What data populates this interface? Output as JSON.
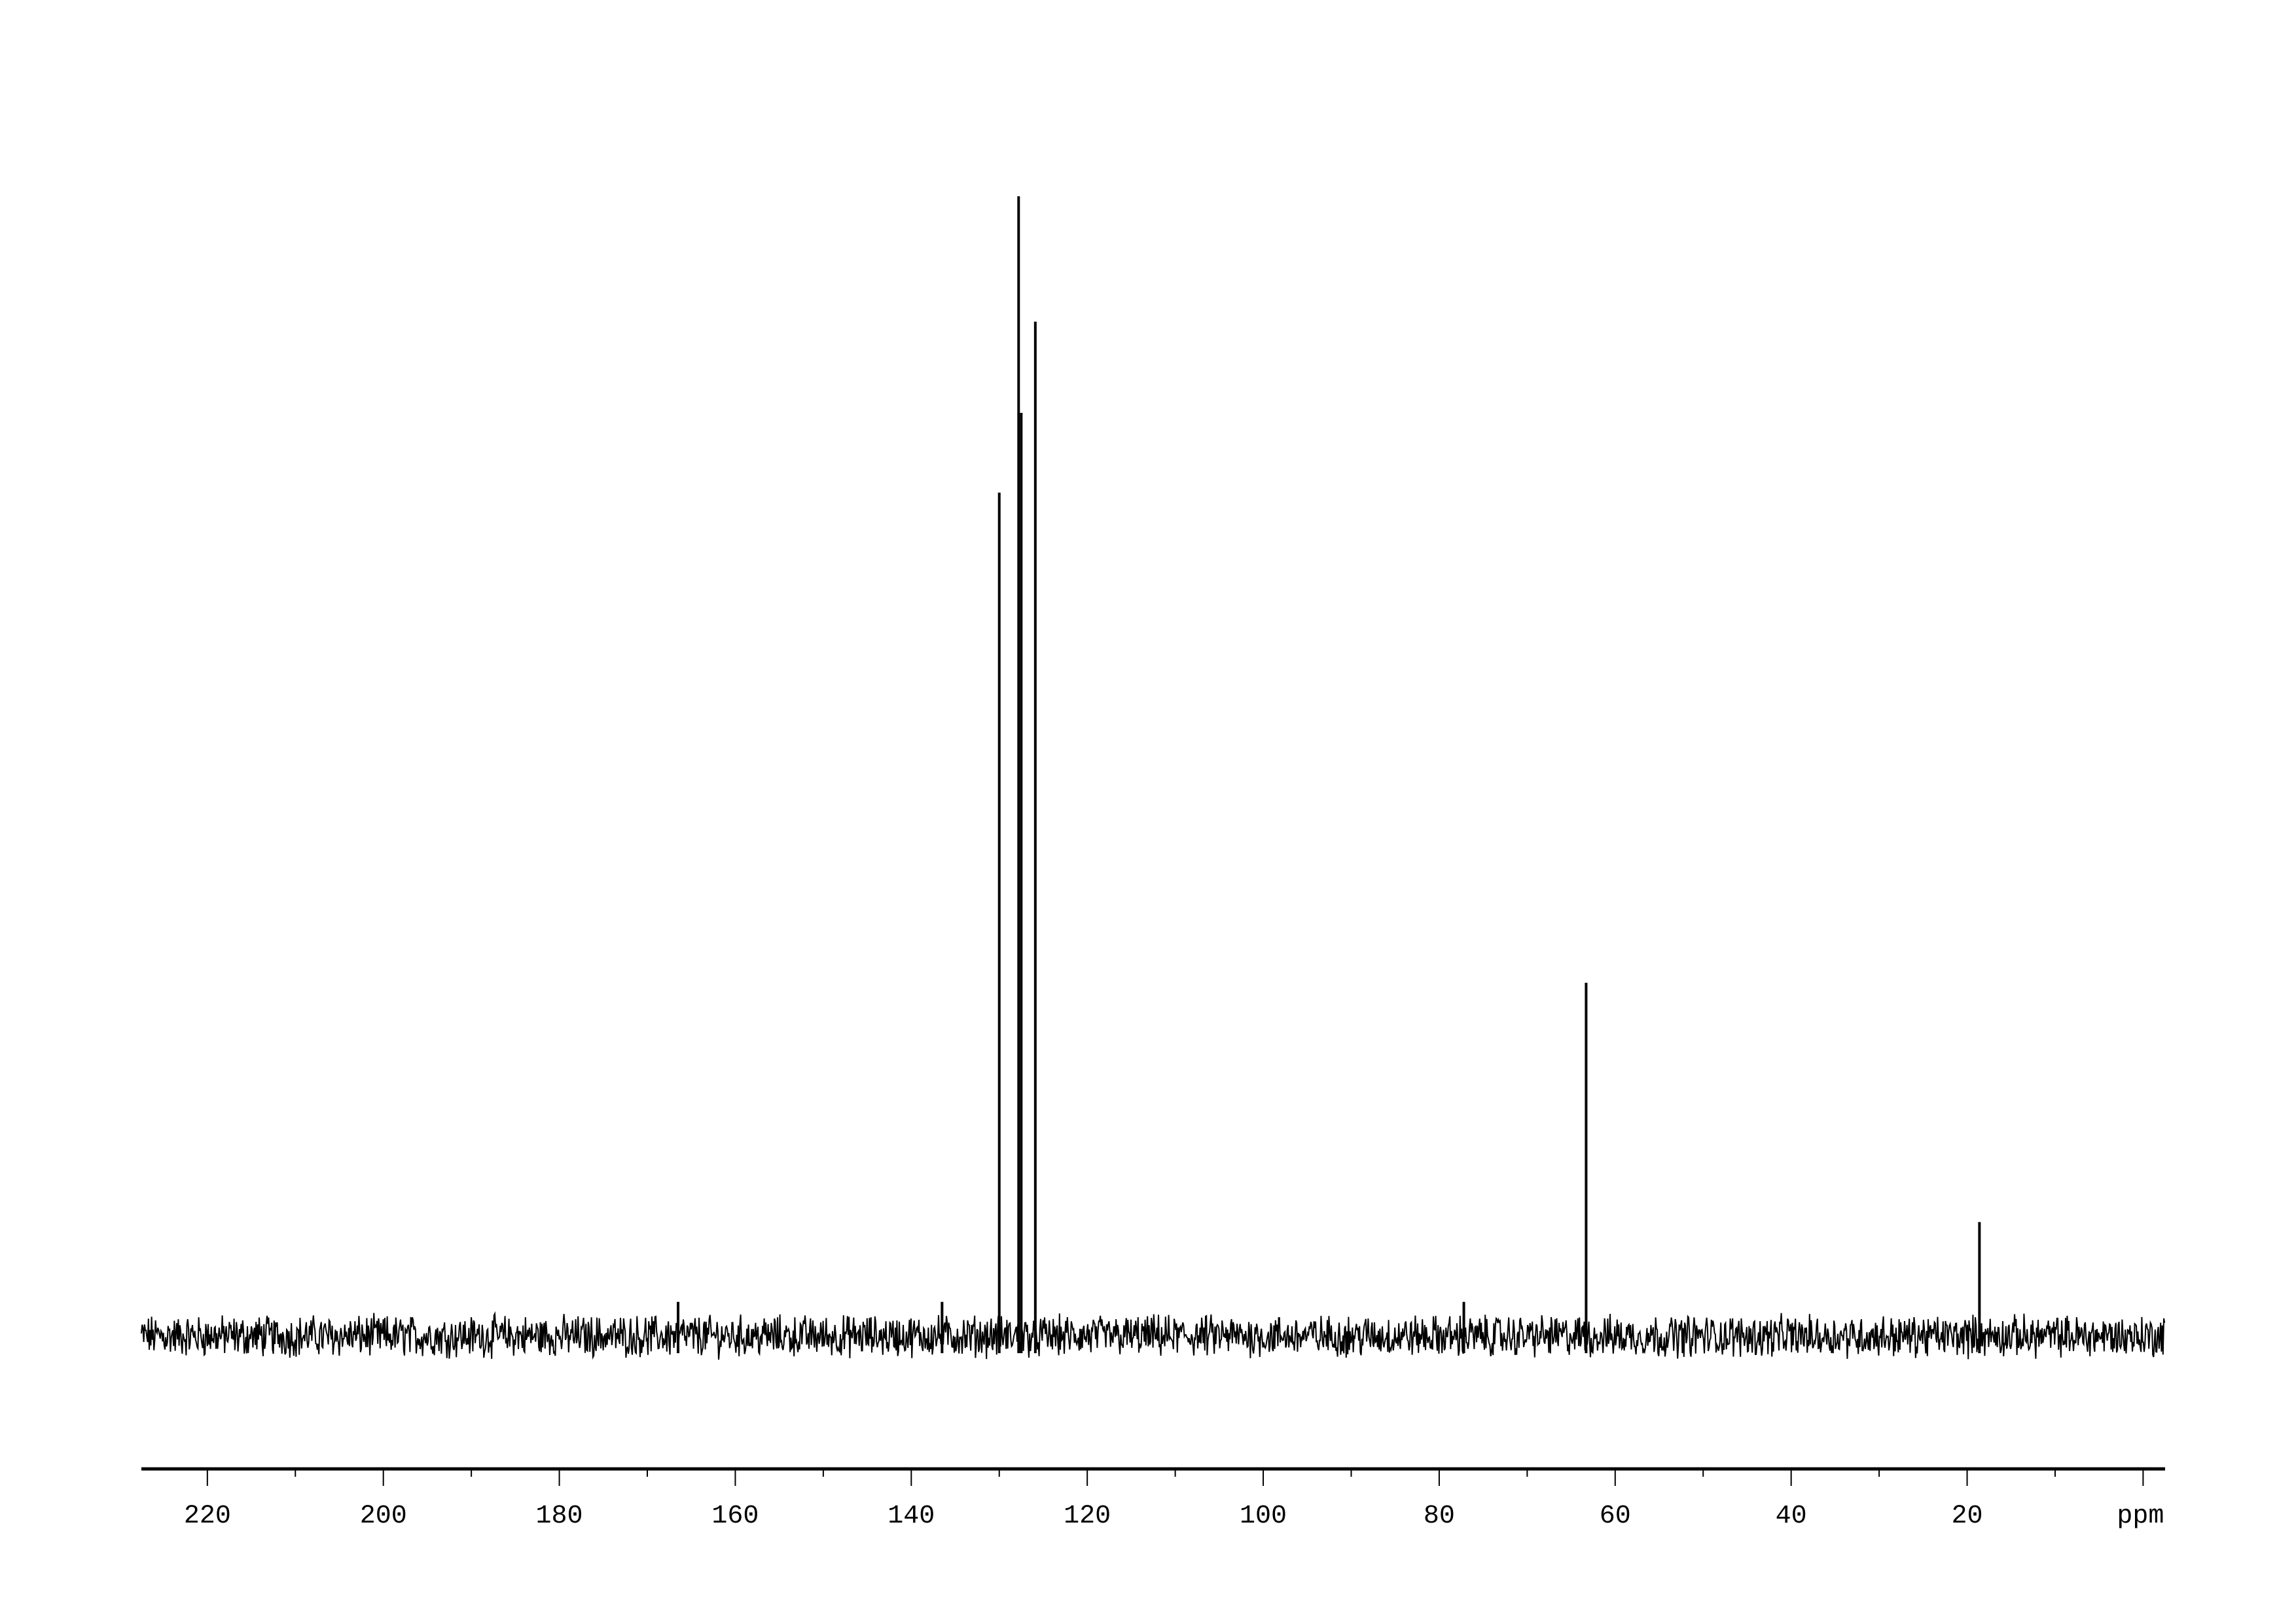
{
  "chart_data": {
    "type": "line",
    "title": "",
    "xlabel": "ppm",
    "ylabel": "",
    "xlim": [
      227.5,
      -2.5
    ],
    "x_reversed": true,
    "ylim": [
      -8,
      105
    ],
    "grid": false,
    "x_ticks": [
      220,
      200,
      180,
      160,
      140,
      120,
      100,
      80,
      60,
      40,
      20
    ],
    "x_minor_step": 10,
    "peaks": [
      {
        "ppm": 130.0,
        "intensity": 74
      },
      {
        "ppm": 127.8,
        "intensity": 100
      },
      {
        "ppm": 127.5,
        "intensity": 81
      },
      {
        "ppm": 125.9,
        "intensity": 89
      },
      {
        "ppm": 63.3,
        "intensity": 31
      },
      {
        "ppm": 18.6,
        "intensity": 10
      },
      {
        "ppm": 136.5,
        "intensity": 3
      },
      {
        "ppm": 77.2,
        "intensity": 3
      },
      {
        "ppm": 166.5,
        "intensity": 3
      }
    ],
    "line_color": "#000000"
  }
}
